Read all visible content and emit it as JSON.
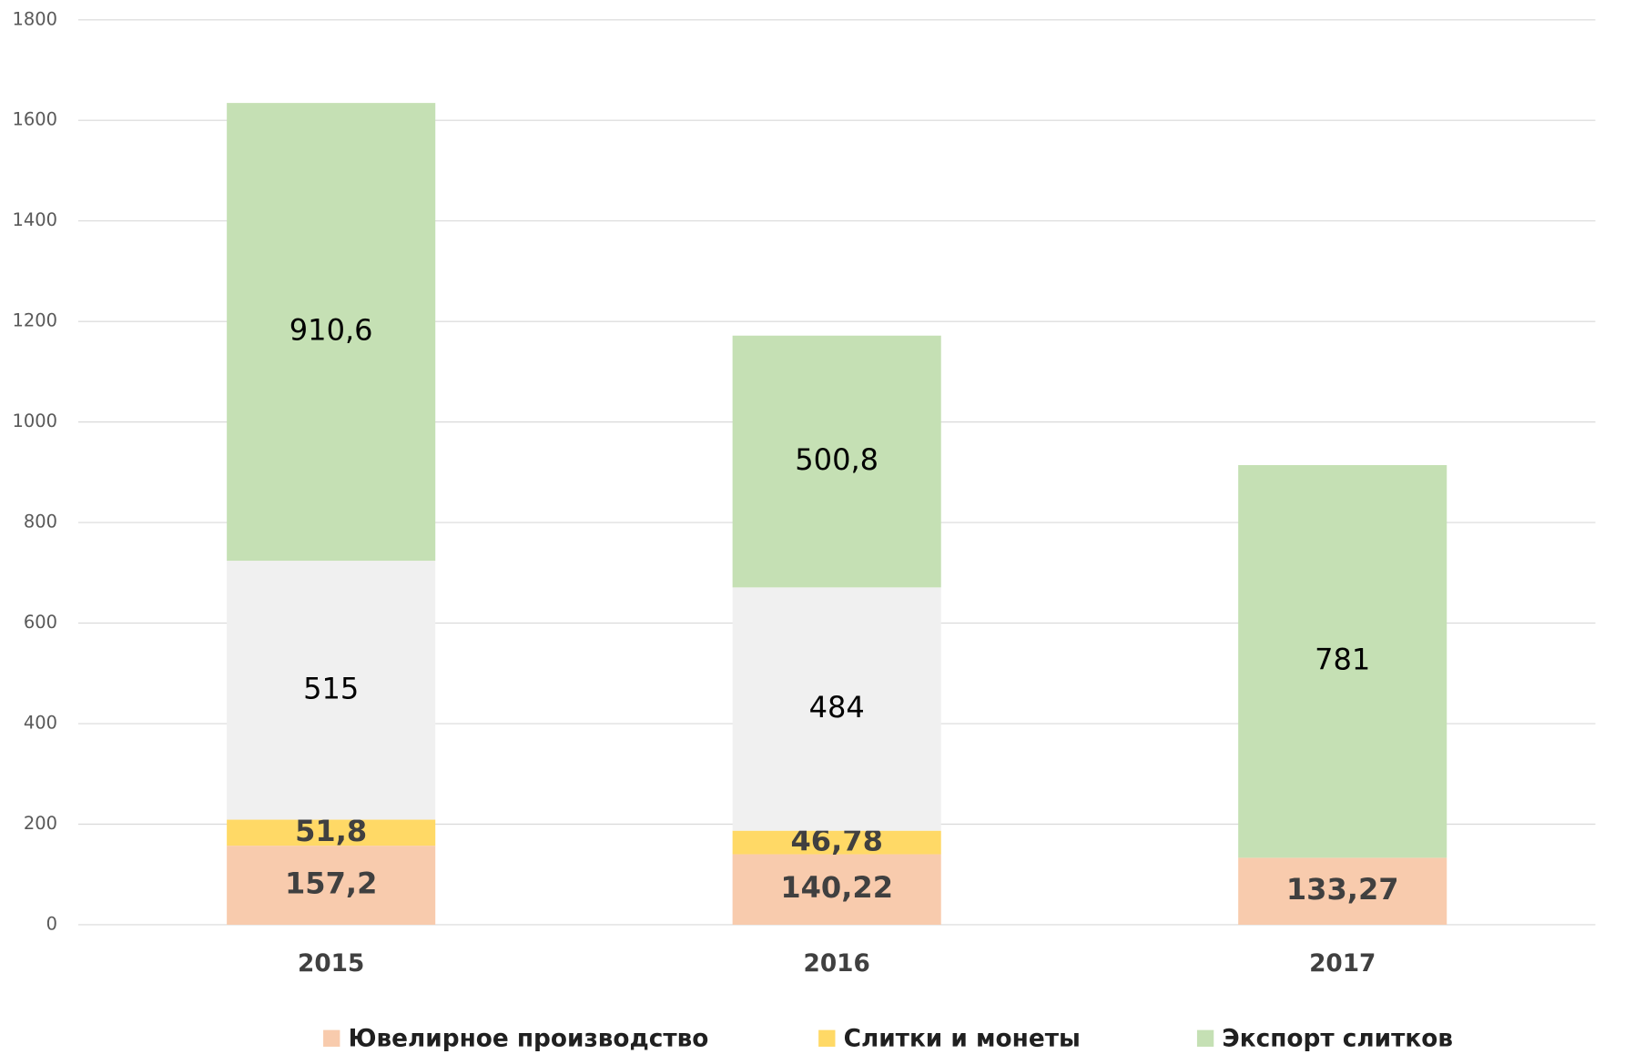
{
  "chart_data": {
    "type": "bar",
    "stacked": true,
    "categories": [
      "2015",
      "2016",
      "2017"
    ],
    "series": [
      {
        "name": "Ювелирное производство",
        "color": "#f8cbad",
        "values": [
          157.2,
          140.22,
          133.27
        ],
        "value_labels": [
          "157,2",
          "140,22",
          "133,27"
        ]
      },
      {
        "name": "Слитки и монеты",
        "color": "#ffd966",
        "values": [
          51.8,
          46.78,
          null
        ],
        "value_labels": [
          "51,8",
          "46,78",
          null
        ]
      },
      {
        "color": "#f0f0f0",
        "values": [
          515,
          484,
          null
        ],
        "value_labels": [
          "515",
          "484",
          null
        ]
      },
      {
        "name": "Экспорт слитков",
        "color": "#c5e0b4",
        "values": [
          910.6,
          500.8,
          781
        ],
        "value_labels": [
          "910,6",
          "500,8",
          "781"
        ]
      }
    ],
    "ylim": [
      0,
      1800
    ],
    "yticks": [
      0,
      200,
      400,
      600,
      800,
      1000,
      1200,
      1400,
      1600,
      1800
    ],
    "grid": true,
    "legend": "bottom"
  }
}
